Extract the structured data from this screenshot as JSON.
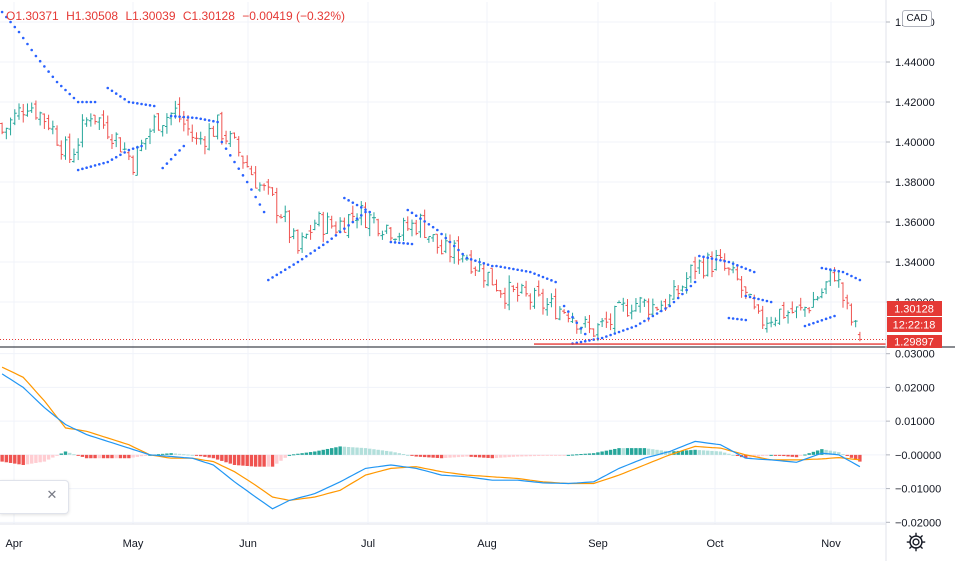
{
  "legend": {
    "open": "O1.30371",
    "high": "H1.30508",
    "low": "L1.30039",
    "close": "C1.30128",
    "change": "−0.00419 (−0.32%)"
  },
  "currency": "CAD",
  "colors": {
    "up": "#26a69a",
    "down": "#ef5350",
    "sar": "#2962ff",
    "macd_line": "#2196f3",
    "signal_line": "#ff9800",
    "hist_pos_strong": "#26a69a",
    "hist_pos_weak": "#b2dfdb",
    "hist_neg_strong": "#ef5350",
    "hist_neg_weak": "#ffcdd2",
    "support_line": "#e53935",
    "price_label_bg": "#e53935"
  },
  "price_labels": {
    "last": "1.30128",
    "countdown": "12:22:18",
    "support": "1.29897"
  },
  "chart_data": [
    {
      "type": "candlestick",
      "title": "",
      "x_labels": [
        "Apr",
        "May",
        "Jun",
        "Jul",
        "Aug",
        "Sep",
        "Oct",
        "Nov"
      ],
      "y_ticks": [
        "1.46000",
        "1.44000",
        "1.42000",
        "1.40000",
        "1.38000",
        "1.36000",
        "1.34000",
        "1.32000"
      ],
      "ylim": [
        1.298,
        1.47
      ],
      "close_path": [
        [
          0,
          1.405
        ],
        [
          6,
          1.42
        ],
        [
          11,
          1.41
        ],
        [
          16,
          1.392
        ],
        [
          21,
          1.415
        ],
        [
          26,
          1.405
        ],
        [
          31,
          1.39
        ],
        [
          36,
          1.41
        ],
        [
          41,
          1.415
        ],
        [
          46,
          1.4
        ],
        [
          51,
          1.408
        ],
        [
          56,
          1.395
        ],
        [
          61,
          1.378
        ],
        [
          66,
          1.365
        ],
        [
          70,
          1.345
        ],
        [
          74,
          1.36
        ],
        [
          79,
          1.358
        ],
        [
          84,
          1.365
        ],
        [
          89,
          1.36
        ],
        [
          94,
          1.355
        ],
        [
          99,
          1.36
        ],
        [
          104,
          1.345
        ],
        [
          109,
          1.345
        ],
        [
          114,
          1.335
        ],
        [
          119,
          1.325
        ],
        [
          124,
          1.322
        ],
        [
          129,
          1.318
        ],
        [
          134,
          1.316
        ],
        [
          139,
          1.305
        ],
        [
          144,
          1.31
        ],
        [
          149,
          1.32
        ],
        [
          154,
          1.318
        ],
        [
          159,
          1.322
        ],
        [
          164,
          1.338
        ],
        [
          169,
          1.34
        ],
        [
          174,
          1.33
        ],
        [
          179,
          1.31
        ],
        [
          184,
          1.315
        ],
        [
          189,
          1.315
        ],
        [
          194,
          1.325
        ],
        [
          197,
          1.335
        ],
        [
          200,
          1.315
        ],
        [
          203,
          1.3013
        ]
      ],
      "sar_segments": [
        [
          [
            0,
            1.465
          ],
          [
            4,
            1.455
          ],
          [
            8,
            1.443
          ],
          [
            13,
            1.43
          ],
          [
            18,
            1.42
          ],
          [
            22,
            1.42
          ]
        ],
        [
          [
            18,
            1.386
          ],
          [
            25,
            1.39
          ],
          [
            30,
            1.396
          ],
          [
            33,
            1.398
          ]
        ],
        [
          [
            25,
            1.427
          ],
          [
            30,
            1.42
          ],
          [
            36,
            1.418
          ]
        ],
        [
          [
            38,
            1.387
          ],
          [
            43,
            1.398
          ]
        ],
        [
          [
            40,
            1.413
          ],
          [
            46,
            1.412
          ],
          [
            51,
            1.41
          ]
        ],
        [
          [
            52,
            1.4
          ],
          [
            58,
            1.38
          ],
          [
            62,
            1.365
          ]
        ],
        [
          [
            63,
            1.331
          ],
          [
            70,
            1.34
          ],
          [
            77,
            1.35
          ],
          [
            83,
            1.36
          ],
          [
            86,
            1.365
          ]
        ],
        [
          [
            81,
            1.372
          ],
          [
            87,
            1.365
          ]
        ],
        [
          [
            92,
            1.35
          ],
          [
            97,
            1.349
          ]
        ],
        [
          [
            96,
            1.366
          ],
          [
            103,
            1.356
          ],
          [
            110,
            1.342
          ],
          [
            116,
            1.338
          ]
        ],
        [
          [
            117,
            1.338
          ],
          [
            125,
            1.335
          ],
          [
            131,
            1.33
          ]
        ],
        [
          [
            133,
            1.318
          ],
          [
            138,
            1.304
          ]
        ],
        [
          [
            135,
            1.2992
          ],
          [
            142,
            1.302
          ],
          [
            150,
            1.308
          ],
          [
            158,
            1.318
          ],
          [
            164,
            1.33
          ]
        ],
        [
          [
            165,
            1.343
          ],
          [
            172,
            1.34
          ],
          [
            178,
            1.335
          ]
        ],
        [
          [
            172,
            1.312
          ],
          [
            176,
            1.311
          ]
        ],
        [
          [
            176,
            1.323
          ],
          [
            182,
            1.32
          ]
        ],
        [
          [
            190,
            1.308
          ],
          [
            197,
            1.313
          ]
        ],
        [
          [
            194,
            1.337
          ],
          [
            199,
            1.335
          ],
          [
            203,
            1.331
          ]
        ]
      ],
      "support_level": 1.29897
    },
    {
      "type": "line",
      "title": "",
      "y_ticks": [
        "0.03000",
        "0.02000",
        "0.01000",
        "−0.00000",
        "−0.01000",
        "−0.02000"
      ],
      "ylim": [
        -0.0205,
        0.0305
      ],
      "series": [
        {
          "role": "macd",
          "points": [
            [
              0,
              0.024
            ],
            [
              5,
              0.02
            ],
            [
              10,
              0.014
            ],
            [
              15,
              0.009
            ],
            [
              20,
              0.006
            ],
            [
              25,
              0.004
            ],
            [
              30,
              0.002
            ],
            [
              35,
              0.0
            ],
            [
              40,
              -0.0005
            ],
            [
              45,
              -0.001
            ],
            [
              50,
              -0.003
            ],
            [
              55,
              -0.008
            ],
            [
              60,
              -0.0125
            ],
            [
              64,
              -0.016
            ],
            [
              68,
              -0.0135
            ],
            [
              74,
              -0.0115
            ],
            [
              80,
              -0.008
            ],
            [
              86,
              -0.004
            ],
            [
              92,
              -0.003
            ],
            [
              98,
              -0.004
            ],
            [
              104,
              -0.006
            ],
            [
              110,
              -0.0065
            ],
            [
              116,
              -0.0075
            ],
            [
              122,
              -0.0075
            ],
            [
              128,
              -0.0083
            ],
            [
              134,
              -0.0085
            ],
            [
              140,
              -0.008
            ],
            [
              146,
              -0.004
            ],
            [
              152,
              -0.001
            ],
            [
              158,
              0.001
            ],
            [
              164,
              0.004
            ],
            [
              170,
              0.003
            ],
            [
              176,
              -0.001
            ],
            [
              182,
              -0.0015
            ],
            [
              188,
              -0.0022
            ],
            [
              194,
              0.0005
            ],
            [
              198,
              0.0
            ],
            [
              203,
              -0.0035
            ]
          ]
        },
        {
          "role": "signal",
          "points": [
            [
              0,
              0.026
            ],
            [
              5,
              0.023
            ],
            [
              10,
              0.016
            ],
            [
              15,
              0.008
            ],
            [
              20,
              0.007
            ],
            [
              25,
              0.005
            ],
            [
              30,
              0.003
            ],
            [
              35,
              0.0
            ],
            [
              40,
              -0.001
            ],
            [
              45,
              -0.001
            ],
            [
              50,
              -0.002
            ],
            [
              55,
              -0.005
            ],
            [
              60,
              -0.009
            ],
            [
              64,
              -0.0125
            ],
            [
              68,
              -0.0135
            ],
            [
              74,
              -0.0125
            ],
            [
              80,
              -0.0105
            ],
            [
              86,
              -0.006
            ],
            [
              92,
              -0.004
            ],
            [
              98,
              -0.0035
            ],
            [
              104,
              -0.005
            ],
            [
              110,
              -0.006
            ],
            [
              116,
              -0.0065
            ],
            [
              122,
              -0.007
            ],
            [
              128,
              -0.008
            ],
            [
              134,
              -0.0085
            ],
            [
              140,
              -0.0085
            ],
            [
              146,
              -0.006
            ],
            [
              152,
              -0.003
            ],
            [
              158,
              0.0
            ],
            [
              164,
              0.0025
            ],
            [
              170,
              0.002
            ],
            [
              176,
              0.0
            ],
            [
              182,
              -0.0015
            ],
            [
              188,
              -0.0015
            ],
            [
              194,
              -0.0012
            ],
            [
              198,
              -0.0008
            ],
            [
              203,
              -0.0015
            ]
          ]
        }
      ],
      "histogram_note": "MACD minus signal"
    }
  ]
}
